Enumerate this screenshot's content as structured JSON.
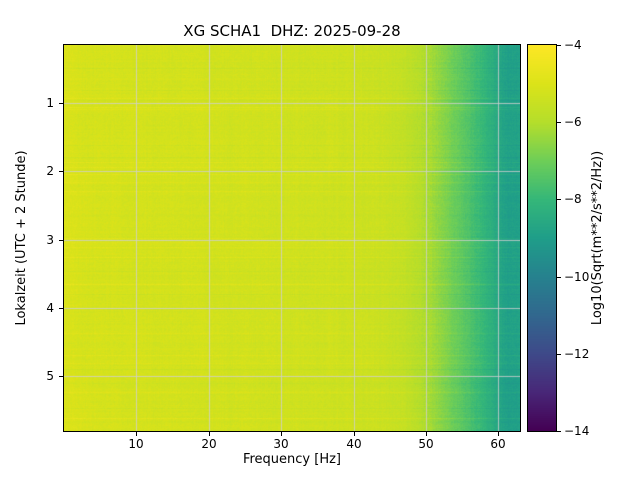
{
  "title": "XG SCHA1  DHZ: 2025-09-28",
  "axes": {
    "xlabel": "Frequency [Hz]",
    "ylabel": "Lokalzeit (UTC + 2 Stunde)",
    "x_ticks": [
      10,
      20,
      30,
      40,
      50,
      60
    ],
    "y_ticks": [
      1,
      2,
      3,
      4,
      5
    ],
    "x_range": [
      0,
      63
    ],
    "y_range": [
      0.15,
      5.8
    ],
    "grid": true,
    "grid_color": "#d0d0d0"
  },
  "colorbar": {
    "label": "Log10(Sqrt(m**2/s**2/Hz))",
    "ticks": [
      -4,
      -6,
      -8,
      -10,
      -12,
      -14
    ],
    "range": [
      -4,
      -14
    ],
    "colormap": "viridis",
    "stops": [
      "#440154",
      "#482878",
      "#3e4a89",
      "#31688e",
      "#26828e",
      "#1f9e89",
      "#35b779",
      "#6ece58",
      "#b5de2b",
      "#dce319",
      "#fde725"
    ]
  },
  "chart_data": {
    "type": "heatmap",
    "title": "XG SCHA1  DHZ: 2025-09-28",
    "xlabel": "Frequency [Hz]",
    "ylabel": "Lokalzeit (UTC + 2 Stunde)",
    "value_label": "Log10(Sqrt(m**2/s**2/Hz))",
    "value_range": [
      -14,
      -4
    ],
    "x_unit": "Hz",
    "y_unit": "hours (local time, UTC + 2)",
    "x_bin_centers_hz": [
      1,
      3,
      5,
      7,
      9,
      11,
      13,
      15,
      17,
      19,
      21,
      23,
      25,
      27,
      29,
      31,
      33,
      35,
      37,
      39,
      41,
      43,
      45,
      47,
      49,
      51,
      53,
      55,
      57,
      59,
      61
    ],
    "y_bin_centers_hours": [
      0.5,
      1.5,
      2.5,
      3.5,
      4.5,
      5.5
    ],
    "values_log10": [
      [
        -5.05,
        -5.15,
        -5.2,
        -5.15,
        -5.2,
        -5.25,
        -5.2,
        -5.25,
        -5.2,
        -5.25,
        -5.3,
        -5.25,
        -5.3,
        -5.25,
        -5.3,
        -5.3,
        -5.35,
        -5.3,
        -5.35,
        -5.35,
        -5.4,
        -5.45,
        -5.5,
        -5.65,
        -5.9,
        -6.3,
        -6.8,
        -7.3,
        -7.8,
        -8.3,
        -8.9
      ],
      [
        -5.1,
        -5.2,
        -5.15,
        -5.2,
        -5.15,
        -5.2,
        -5.25,
        -5.2,
        -5.25,
        -5.2,
        -5.25,
        -5.3,
        -5.25,
        -5.3,
        -5.25,
        -5.35,
        -5.3,
        -5.35,
        -5.3,
        -5.4,
        -5.35,
        -5.4,
        -5.55,
        -5.7,
        -5.95,
        -6.25,
        -6.75,
        -7.25,
        -7.75,
        -8.25,
        -8.85
      ],
      [
        -5.05,
        -5.1,
        -5.2,
        -5.15,
        -5.25,
        -5.2,
        -5.25,
        -5.2,
        -5.25,
        -5.3,
        -5.25,
        -5.3,
        -5.25,
        -5.3,
        -5.35,
        -5.3,
        -5.35,
        -5.3,
        -5.4,
        -5.35,
        -5.45,
        -5.4,
        -5.5,
        -5.6,
        -5.9,
        -6.35,
        -6.85,
        -7.35,
        -7.85,
        -8.35,
        -8.95
      ],
      [
        -5.05,
        -5.15,
        -5.2,
        -5.15,
        -5.2,
        -5.25,
        -5.2,
        -5.25,
        -5.2,
        -5.25,
        -5.3,
        -5.25,
        -5.3,
        -5.25,
        -5.3,
        -5.3,
        -5.35,
        -5.3,
        -5.35,
        -5.35,
        -5.4,
        -5.45,
        -5.5,
        -5.65,
        -5.9,
        -6.3,
        -6.8,
        -7.3,
        -7.8,
        -8.3,
        -8.9
      ],
      [
        -5.1,
        -5.2,
        -5.15,
        -5.2,
        -5.15,
        -5.2,
        -5.25,
        -5.2,
        -5.25,
        -5.2,
        -5.25,
        -5.3,
        -5.25,
        -5.3,
        -5.25,
        -5.35,
        -5.3,
        -5.35,
        -5.3,
        -5.4,
        -5.35,
        -5.4,
        -5.55,
        -5.7,
        -5.95,
        -6.25,
        -6.75,
        -7.25,
        -7.75,
        -8.25,
        -8.85
      ],
      [
        -5.05,
        -5.1,
        -5.2,
        -5.15,
        -5.25,
        -5.2,
        -5.25,
        -5.2,
        -5.25,
        -5.3,
        -5.25,
        -5.3,
        -5.25,
        -5.3,
        -5.35,
        -5.3,
        -5.35,
        -5.3,
        -5.4,
        -5.35,
        -5.45,
        -5.4,
        -5.5,
        -5.6,
        -5.9,
        -6.35,
        -6.85,
        -7.35,
        -7.85,
        -8.35,
        -8.95
      ]
    ],
    "colormap": "viridis",
    "legend_position": "right-colorbar"
  }
}
